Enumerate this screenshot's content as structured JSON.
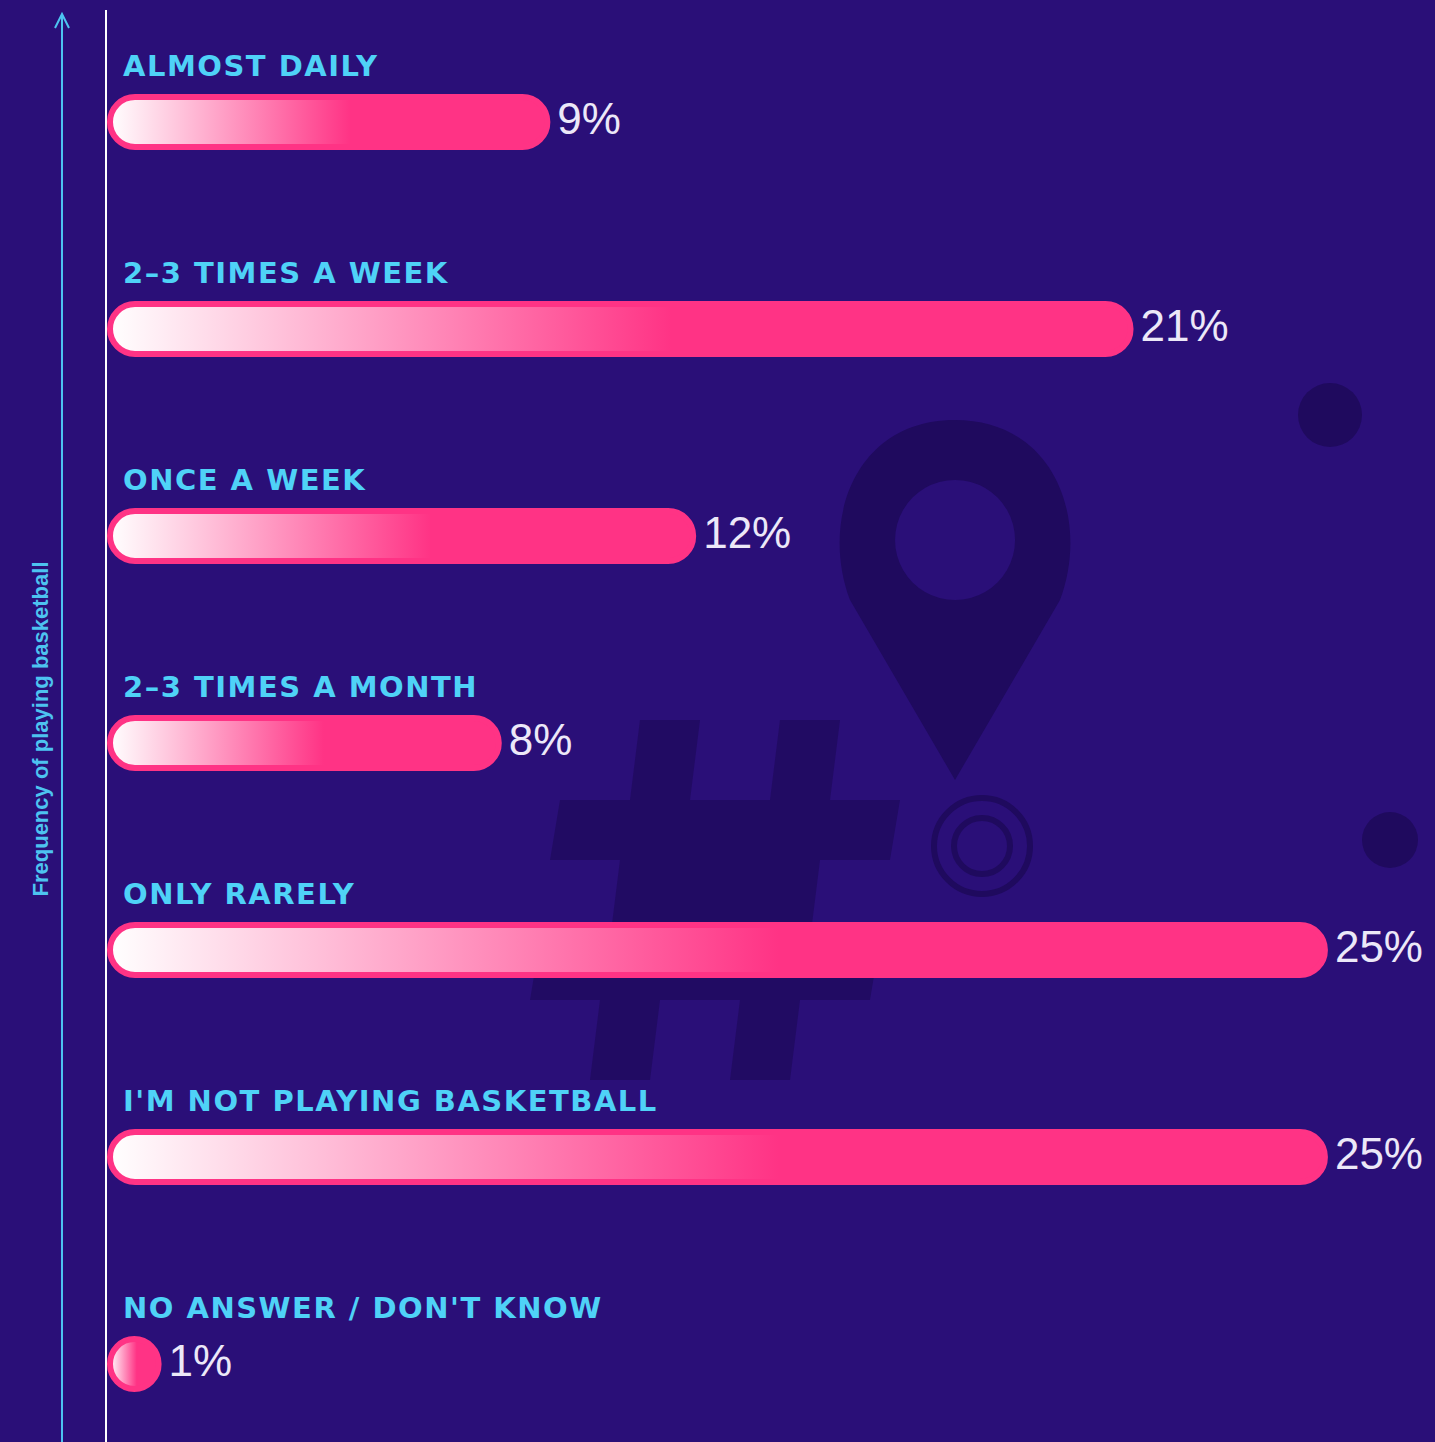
{
  "chart_data": {
    "type": "bar",
    "orientation": "horizontal",
    "ylabel": "Frequency of playing basketball",
    "categories": [
      "ALMOST DAILY",
      "2–3 TIMES A WEEK",
      "ONCE A WEEK",
      "2–3 TIMES A MONTH",
      "ONLY RARELY",
      "I'M NOT PLAYING BASKETBALL",
      "NO ANSWER / DON'T KNOW"
    ],
    "values": [
      9,
      21,
      12,
      8,
      25,
      25,
      1
    ],
    "value_labels": [
      "9%",
      "21%",
      "12%",
      "8%",
      "25%",
      "25%",
      "1%"
    ],
    "data_labels": true,
    "color": "#ff3385",
    "xlim": [
      0,
      25
    ],
    "tick_labels": false,
    "grid": false
  }
}
